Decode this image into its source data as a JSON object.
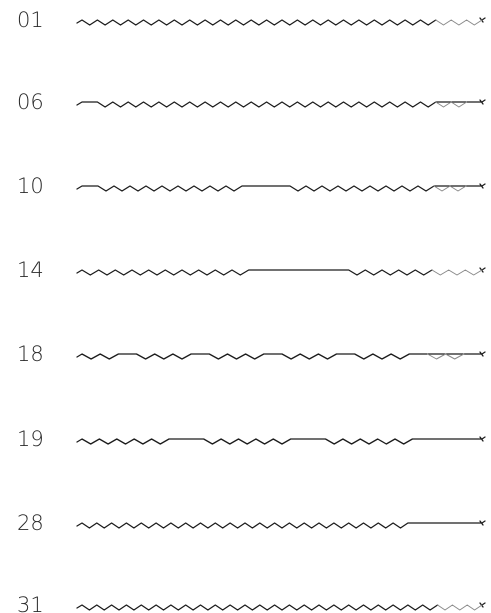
{
  "rows": [
    {
      "label": "01",
      "pattern": "wwwwwwwwwwwwwwwwwwwwwwwvvv"
    },
    {
      "label": "06",
      "pattern": "-wwwwwwwwwwwwwwwwwwwwwwvv-"
    },
    {
      "label": "10",
      "pattern": "-wwwwwwwww---wwwwwwwwwvv-"
    },
    {
      "label": "14",
      "pattern": "wwwwwwwwww------wwwwwvvv"
    },
    {
      "label": "18",
      "pattern": "ww-www-www-www-www-vv-"
    },
    {
      "label": "19",
      "pattern": "wwwww--wwwww--wwwww----"
    },
    {
      "label": "28",
      "pattern": "wwwwwwwwwwwwwwwwwwwwww-----"
    },
    {
      "label": "31",
      "pattern": "wwwwwwwwwwwwwwwwwwwwwwwwvvv"
    }
  ]
}
